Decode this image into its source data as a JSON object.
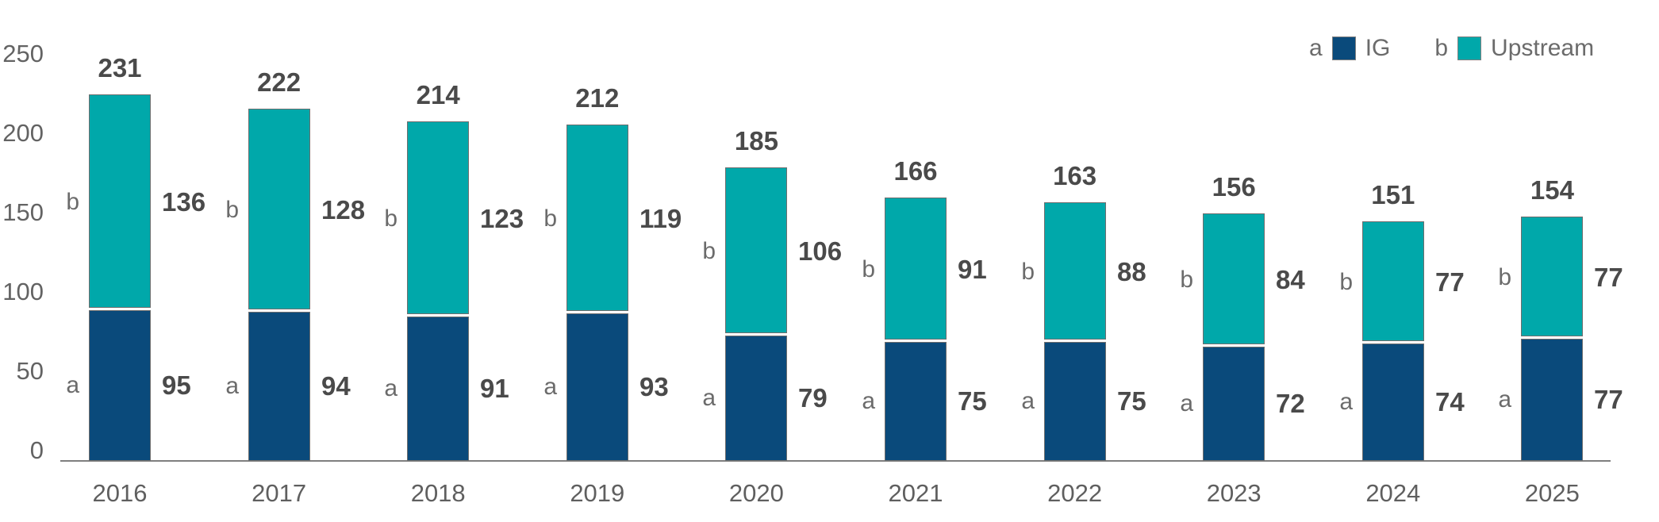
{
  "chart_data": {
    "type": "bar",
    "stacked": true,
    "title": "",
    "xlabel": "",
    "ylabel": "",
    "categories": [
      "2016",
      "2017",
      "2018",
      "2019",
      "2020",
      "2021",
      "2022",
      "2023",
      "2024",
      "2025"
    ],
    "series": [
      {
        "prefix": "a",
        "name": "IG",
        "color": "#0A4A7B",
        "values": [
          95,
          94,
          91,
          93,
          79,
          75,
          75,
          72,
          74,
          77
        ]
      },
      {
        "prefix": "b",
        "name": "Upstream",
        "color": "#00A8AA",
        "values": [
          136,
          128,
          123,
          119,
          106,
          91,
          88,
          84,
          77,
          77
        ]
      }
    ],
    "totals": [
      231,
      222,
      214,
      212,
      185,
      166,
      163,
      156,
      151,
      154
    ],
    "y_axis": {
      "min": 0,
      "max": 250,
      "ticks": [
        0,
        50,
        100,
        150,
        200,
        250
      ]
    },
    "grid": "off",
    "legend_position": "top-right"
  },
  "colors": {
    "ig_fill": "#0A4A7B",
    "upstream_fill": "#00A8AA",
    "segment_border": "#6E6E6E",
    "axis_line": "#7F7F7F",
    "text_regular": "#636363",
    "text_bold": "#4A4A4A"
  }
}
